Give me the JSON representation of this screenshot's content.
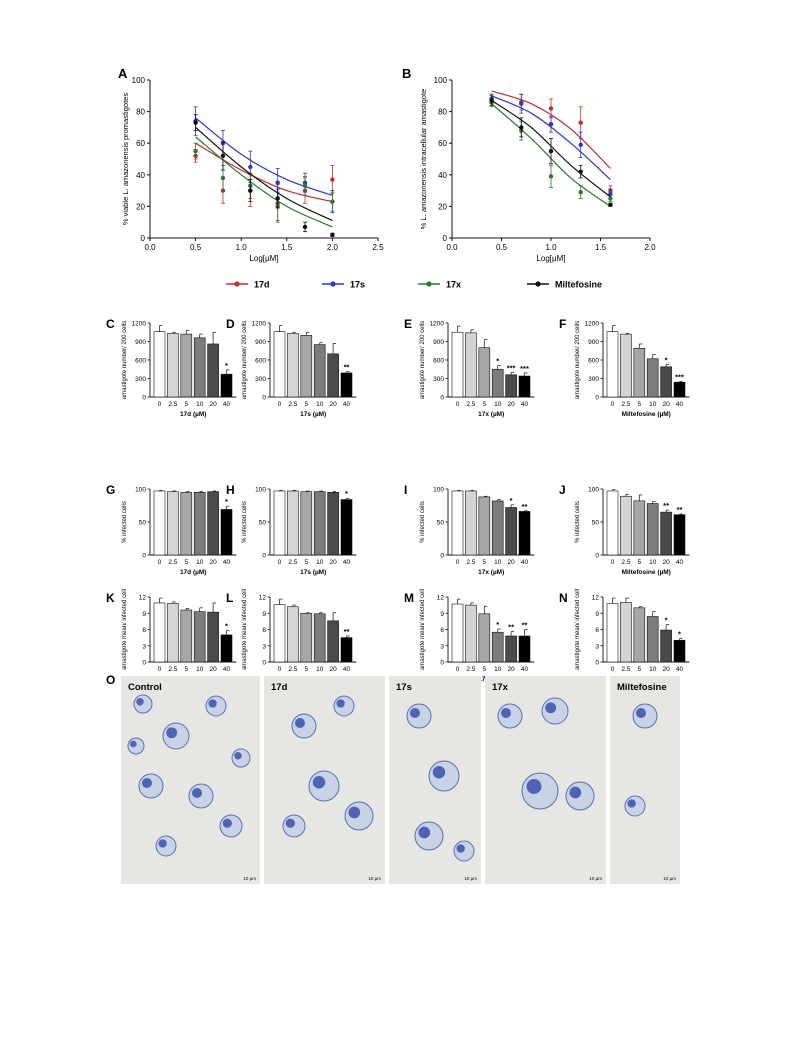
{
  "curves": {
    "legend": [
      {
        "name": "17d",
        "color": "#c0302f"
      },
      {
        "name": "17s",
        "color": "#2a36c9"
      },
      {
        "name": "17x",
        "color": "#2b7a2b"
      },
      {
        "name": "Miltefosine",
        "color": "#111111"
      }
    ],
    "A": {
      "letter": "A",
      "ylabel": "% viable L. amazonensis promastigotes",
      "xlabel": "Log[µM]",
      "xlim": [
        0.0,
        2.5
      ],
      "ylim": [
        0,
        100
      ],
      "xticks": [
        "0.0",
        "0.5",
        "1.0",
        "1.5",
        "2.0",
        "2.5"
      ],
      "yticks": [
        "0",
        "20",
        "40",
        "60",
        "80",
        "100"
      ]
    },
    "B": {
      "letter": "B",
      "ylabel": "% L. amazonensis intracellular amastigote",
      "xlabel": "Log[µM]",
      "xlim": [
        0.0,
        2.0
      ],
      "ylim": [
        0,
        100
      ],
      "xticks": [
        "0.0",
        "0.5",
        "1.0",
        "1.5",
        "2.0"
      ],
      "yticks": [
        "0",
        "20",
        "40",
        "60",
        "80",
        "100"
      ]
    }
  },
  "bar_groups": {
    "amastigote_number": {
      "ylabel": "amastigote number/ 200 cells",
      "ylim": [
        0,
        1200
      ],
      "yticks": [
        "0",
        "300",
        "600",
        "900",
        "1200"
      ]
    },
    "infected": {
      "ylabel": "% infected cells",
      "ylim": [
        0,
        100
      ],
      "yticks": [
        "0",
        "50",
        "100"
      ]
    },
    "mean": {
      "ylabel": "amastigote mean/ infected cell",
      "ylim": [
        0,
        12
      ],
      "yticks": [
        "0",
        "3",
        "6",
        "9",
        "12"
      ]
    },
    "categories": [
      "0",
      "2.5",
      "5",
      "10",
      "20",
      "40"
    ],
    "bar_fills": [
      "#ffffff",
      "#d4d4d4",
      "#a6a6a6",
      "#7c7c7c",
      "#4a4a4a",
      "#000000"
    ]
  },
  "chart_data": [
    {
      "type": "line",
      "panel": "A",
      "xlabel": "Log[µM]",
      "ylabel": "% viable L. amazonensis promastigotes",
      "xlim": [
        0.0,
        2.5
      ],
      "ylim": [
        0,
        100
      ],
      "series": [
        {
          "name": "17d",
          "x": [
            0.5,
            0.8,
            1.1,
            1.4,
            1.7,
            2.0
          ],
          "y": [
            52,
            30,
            30,
            22,
            30,
            37
          ],
          "err": [
            4,
            8,
            10,
            12,
            8,
            9
          ],
          "fit": [
            [
              0.5,
              60
            ],
            [
              1.0,
              43
            ],
            [
              1.5,
              30
            ],
            [
              2.0,
              23
            ]
          ]
        },
        {
          "name": "17s",
          "x": [
            0.5,
            0.8,
            1.1,
            1.4,
            1.7,
            2.0
          ],
          "y": [
            74,
            60,
            45,
            35,
            35,
            23
          ],
          "err": [
            9,
            8,
            10,
            9,
            6,
            7
          ],
          "fit": [
            [
              0.5,
              76
            ],
            [
              1.0,
              53
            ],
            [
              1.5,
              37
            ],
            [
              2.0,
              27
            ]
          ]
        },
        {
          "name": "17x",
          "x": [
            0.5,
            0.8,
            1.1,
            1.4,
            1.7,
            2.0
          ],
          "y": [
            55,
            38,
            33,
            20,
            33,
            23
          ],
          "err": [
            5,
            8,
            8,
            9,
            6,
            6
          ],
          "fit": [
            [
              0.5,
              64
            ],
            [
              1.0,
              40
            ],
            [
              1.5,
              20
            ],
            [
              2.0,
              7
            ]
          ]
        },
        {
          "name": "Miltefosine",
          "x": [
            0.5,
            0.8,
            1.1,
            1.4,
            1.7,
            2.0
          ],
          "y": [
            73,
            52,
            30,
            25,
            7,
            2
          ],
          "err": [
            5,
            9,
            7,
            6,
            3,
            1
          ],
          "fit": [
            [
              0.5,
              70
            ],
            [
              1.0,
              45
            ],
            [
              1.5,
              25
            ],
            [
              2.0,
              11
            ]
          ]
        }
      ]
    },
    {
      "type": "line",
      "panel": "B",
      "xlabel": "Log[µM]",
      "ylabel": "% L. amazonensis intracellular amastigote",
      "xlim": [
        0.0,
        2.0
      ],
      "ylim": [
        0,
        100
      ],
      "series": [
        {
          "name": "17d",
          "x": [
            0.4,
            0.7,
            1.0,
            1.3,
            1.6
          ],
          "y": [
            88,
            86,
            82,
            73,
            30
          ],
          "err": [
            3,
            5,
            6,
            10,
            3
          ],
          "fit": [
            [
              0.4,
              93
            ],
            [
              0.8,
              85
            ],
            [
              1.2,
              69
            ],
            [
              1.6,
              44
            ]
          ]
        },
        {
          "name": "17s",
          "x": [
            0.4,
            0.7,
            1.0,
            1.3,
            1.6
          ],
          "y": [
            88,
            85,
            72,
            59,
            28
          ],
          "err": [
            3,
            6,
            5,
            8,
            3
          ],
          "fit": [
            [
              0.4,
              90
            ],
            [
              0.8,
              79
            ],
            [
              1.2,
              60
            ],
            [
              1.6,
              37
            ]
          ]
        },
        {
          "name": "17x",
          "x": [
            0.4,
            0.7,
            1.0,
            1.3,
            1.6
          ],
          "y": [
            86,
            68,
            39,
            29,
            25
          ],
          "err": [
            3,
            6,
            7,
            4,
            2
          ],
          "fit": [
            [
              0.4,
              85
            ],
            [
              0.8,
              63
            ],
            [
              1.2,
              38
            ],
            [
              1.6,
              20
            ]
          ]
        },
        {
          "name": "Miltefosine",
          "x": [
            0.4,
            0.7,
            1.0,
            1.3,
            1.6
          ],
          "y": [
            87,
            70,
            55,
            42,
            21
          ],
          "err": [
            3,
            6,
            8,
            4,
            1
          ],
          "fit": [
            [
              0.4,
              87
            ],
            [
              0.8,
              70
            ],
            [
              1.2,
              46
            ],
            [
              1.6,
              26
            ]
          ]
        }
      ]
    },
    {
      "type": "bar",
      "panel": "C",
      "xlabel": "17d (µM)",
      "ylabel": "amastigote number/ 200 cells",
      "categories": [
        "0",
        "2.5",
        "5",
        "10",
        "20",
        "40"
      ],
      "values": [
        1060,
        1030,
        1020,
        960,
        860,
        370
      ],
      "err": [
        100,
        20,
        60,
        60,
        190,
        70
      ],
      "sig": [
        "",
        "",
        "",
        "",
        "",
        "*"
      ],
      "ylim": [
        0,
        1200
      ]
    },
    {
      "type": "bar",
      "panel": "D",
      "xlabel": "17s (µM)",
      "ylabel": "amastigote number/ 200 cells",
      "categories": [
        "0",
        "2.5",
        "5",
        "10",
        "20",
        "40"
      ],
      "values": [
        1060,
        1030,
        1000,
        850,
        700,
        390
      ],
      "err": [
        100,
        20,
        50,
        30,
        170,
        20
      ],
      "sig": [
        "",
        "",
        "",
        "",
        "",
        "**"
      ],
      "ylim": [
        0,
        1200
      ]
    },
    {
      "type": "bar",
      "panel": "E",
      "xlabel": "17x (µM)",
      "ylabel": "amastigote number/ 200 cells",
      "categories": [
        "0",
        "2.5",
        "5",
        "10",
        "20",
        "40"
      ],
      "values": [
        1050,
        1040,
        800,
        450,
        360,
        340
      ],
      "err": [
        100,
        50,
        130,
        60,
        40,
        50
      ],
      "sig": [
        "",
        "",
        "",
        "*",
        "***",
        "***"
      ],
      "ylim": [
        0,
        1200
      ]
    },
    {
      "type": "bar",
      "panel": "F",
      "xlabel": "Miltefosine (µM)",
      "ylabel": "amastigote number/ 200 cells",
      "categories": [
        "0",
        "2.5",
        "5",
        "10",
        "20",
        "40"
      ],
      "values": [
        1060,
        1020,
        790,
        620,
        490,
        240
      ],
      "err": [
        100,
        10,
        70,
        70,
        40,
        10
      ],
      "sig": [
        "",
        "",
        "",
        "",
        "*",
        "***"
      ],
      "ylim": [
        0,
        1200
      ]
    },
    {
      "type": "bar",
      "panel": "G",
      "xlabel": "17d (µM)",
      "ylabel": "% infected cells",
      "categories": [
        "0",
        "2.5",
        "5",
        "10",
        "20",
        "40"
      ],
      "values": [
        97,
        96,
        95,
        95,
        96,
        69
      ],
      "err": [
        1,
        1,
        1,
        1,
        1,
        5
      ],
      "sig": [
        "",
        "",
        "",
        "",
        "",
        "*"
      ],
      "ylim": [
        0,
        100
      ]
    },
    {
      "type": "bar",
      "panel": "H",
      "xlabel": "17s (µM)",
      "ylabel": "% infected cells",
      "categories": [
        "0",
        "2.5",
        "5",
        "10",
        "20",
        "40"
      ],
      "values": [
        97,
        97,
        96,
        96,
        95,
        84
      ],
      "err": [
        1,
        1,
        1,
        1,
        1,
        2
      ],
      "sig": [
        "",
        "",
        "",
        "",
        "",
        "*"
      ],
      "ylim": [
        0,
        100
      ]
    },
    {
      "type": "bar",
      "panel": "I",
      "xlabel": "17x (µM)",
      "ylabel": "% infected cells",
      "categories": [
        "0",
        "2.5",
        "5",
        "10",
        "20",
        "40"
      ],
      "values": [
        97,
        97,
        88,
        82,
        72,
        66
      ],
      "err": [
        1,
        1,
        1,
        2,
        4,
        1
      ],
      "sig": [
        "",
        "",
        "",
        "",
        "*",
        "**"
      ],
      "ylim": [
        0,
        100
      ]
    },
    {
      "type": "bar",
      "panel": "J",
      "xlabel": "Miltefosine (µM)",
      "ylabel": "% infected cells",
      "categories": [
        "0",
        "2.5",
        "5",
        "10",
        "20",
        "40"
      ],
      "values": [
        97,
        89,
        82,
        78,
        65,
        61
      ],
      "err": [
        2,
        3,
        9,
        3,
        3,
        1
      ],
      "sig": [
        "",
        "",
        "",
        "",
        "**",
        "**"
      ],
      "ylim": [
        0,
        100
      ]
    },
    {
      "type": "bar",
      "panel": "K",
      "xlabel": "17d (µM)",
      "ylabel": "amastigote mean/ infected cell",
      "categories": [
        "0",
        "2.5",
        "5",
        "10",
        "20",
        "40"
      ],
      "values": [
        10.9,
        10.8,
        9.6,
        9.3,
        9.2,
        5.0
      ],
      "err": [
        0.9,
        0.3,
        0.3,
        0.7,
        1.7,
        0.8
      ],
      "sig": [
        "",
        "",
        "",
        "",
        "",
        "*"
      ],
      "ylim": [
        0,
        12
      ]
    },
    {
      "type": "bar",
      "panel": "L",
      "xlabel": "17s (µM)",
      "ylabel": "amastigote mean/ infected cell",
      "categories": [
        "0",
        "2.5",
        "5",
        "10",
        "20",
        "40"
      ],
      "values": [
        10.6,
        10.2,
        9.0,
        8.9,
        7.6,
        4.5
      ],
      "err": [
        1.0,
        0.3,
        0.1,
        0.2,
        1.5,
        0.3
      ],
      "sig": [
        "",
        "",
        "",
        "",
        "",
        "**"
      ],
      "ylim": [
        0,
        12
      ]
    },
    {
      "type": "bar",
      "panel": "M",
      "xlabel": "17x (µM)",
      "ylabel": "amastigote mean/ infected cell",
      "categories": [
        "0",
        "2.5",
        "5",
        "10",
        "20",
        "40"
      ],
      "values": [
        10.7,
        10.5,
        8.9,
        5.5,
        4.8,
        4.8
      ],
      "err": [
        0.9,
        0.4,
        1.4,
        0.6,
        0.8,
        1.2
      ],
      "sig": [
        "",
        "",
        "",
        "*",
        "**",
        "**"
      ],
      "ylim": [
        0,
        12
      ]
    },
    {
      "type": "bar",
      "panel": "N",
      "xlabel": "Miltefosine (µM)",
      "ylabel": "amastigote mean/ infected cell",
      "categories": [
        "0",
        "2.5",
        "5",
        "10",
        "20",
        "40"
      ],
      "values": [
        10.8,
        11.0,
        10.0,
        8.4,
        5.9,
        4.0
      ],
      "err": [
        1.0,
        0.8,
        0.2,
        0.9,
        1.0,
        0.3
      ],
      "sig": [
        "",
        "",
        "",
        "",
        "*",
        "*"
      ],
      "ylim": [
        0,
        12
      ]
    }
  ],
  "micrographs": {
    "letter": "O",
    "scale_label": "10 µm",
    "panels": [
      {
        "label": "Control"
      },
      {
        "label": "17d"
      },
      {
        "label": "17s"
      },
      {
        "label": "17x"
      },
      {
        "label": "Miltefosine"
      }
    ]
  }
}
